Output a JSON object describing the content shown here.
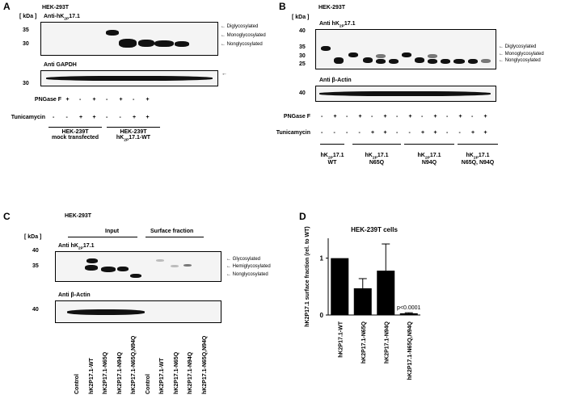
{
  "panelA": {
    "letter": "A",
    "cell": "HEK-293T",
    "kda": "[ kDa ]",
    "ab1": "Anti-hK2P17.1",
    "ab2": "Anti GAPDH",
    "mw_top": [
      "35",
      "30"
    ],
    "mw_bottom": "30",
    "arrows": [
      "Diglycosylated",
      "Monoglycosylated",
      "Nonglycosylated"
    ],
    "row_pngase": "PNGase F",
    "row_tuni": "Tunicamycin",
    "pngase_signs": [
      "-",
      "+",
      "-",
      "+",
      "-",
      "+",
      "-",
      "+"
    ],
    "tuni_signs": [
      "-",
      "-",
      "+",
      "+",
      "-",
      "-",
      "+",
      "+"
    ],
    "group1": [
      "HEK-239T",
      "mock transfected"
    ],
    "group2": [
      "HEK-239T",
      "hK2P17.1-WT"
    ]
  },
  "panelB": {
    "letter": "B",
    "cell": "HEK-293T",
    "kda": "[ kDa ]",
    "ab1": "Anti hK2P17.1",
    "ab2": "Anti β-Actin",
    "mw_top": [
      "40",
      "35",
      "30",
      "25"
    ],
    "mw_bottom": "40",
    "arrows": [
      "Diglycosylated",
      "Monoglycosylated",
      "Nonglycosylated"
    ],
    "row_pngase": "PNGase F",
    "row_tuni": "Tunicamycin",
    "pngase_signs": [
      "-",
      "+",
      "-",
      "+",
      "-",
      "+",
      "-",
      "+",
      "-",
      "+",
      "-",
      "+",
      "-",
      "+"
    ],
    "tuni_signs": [
      "-",
      "-",
      "-",
      "-",
      "+",
      "+",
      "-",
      "-",
      "+",
      "+",
      "-",
      "-",
      "+",
      "+"
    ],
    "groups": [
      [
        "hK2P17.1",
        "WT"
      ],
      [
        "hK2P17.1",
        "N65Q"
      ],
      [
        "hK2P17.1",
        "N94Q"
      ],
      [
        "hK2P17.1",
        "N65Q, N94Q"
      ]
    ]
  },
  "panelC": {
    "letter": "C",
    "cell": "HEK-293T",
    "kda": "[ kDa ]",
    "input": "Input",
    "surface": "Surface fraction",
    "ab1": "Anti hK2P17.1",
    "ab2": "Anti β-Actin",
    "mw_top": [
      "40",
      "35"
    ],
    "mw_bottom": "40",
    "arrows": [
      "Glycosylated",
      "Hemiglycosylated",
      "Nonglycosylated"
    ],
    "lanes": [
      "Control",
      "hK2P17.1-WT",
      "hK2P17.1-N65Q",
      "hK2P17.1-N94Q",
      "hK2P17.1-N65Q,N94Q",
      "Control",
      "hK2P17.1-WT",
      "hK2P17.1-N65Q",
      "hK2P17.1-N94Q",
      "hK2P17.1-N65Q,N94Q"
    ]
  },
  "panelD": {
    "letter": "D",
    "pvalue": "p<0.0001",
    "chart_data": {
      "type": "bar",
      "title": "HEK-239T cells",
      "ylabel": "hK2P17.1 surface fraction (rel. to WT)",
      "categories": [
        "hK2P17.1-WT",
        "hK2P17.1-N65Q",
        "hK2P17.1-N94Q",
        "hK2P17.1-N65Q,N94Q"
      ],
      "values": [
        1.0,
        0.47,
        0.78,
        0.03
      ],
      "errors": [
        0,
        0.17,
        0.47,
        0.01
      ],
      "ylim": [
        0,
        1.35
      ],
      "yticks": [
        "0",
        "1"
      ],
      "grid": false,
      "bar_color": "#000000"
    }
  }
}
